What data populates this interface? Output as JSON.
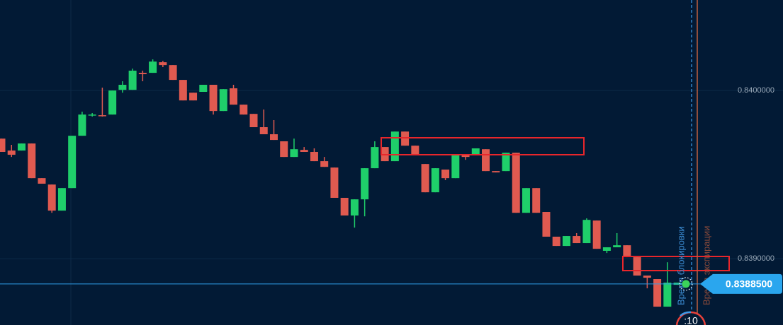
{
  "chart_data": {
    "type": "candlestick",
    "ylim": [
      0.838606,
      0.840538
    ],
    "yticks": [
      {
        "value": 0.84,
        "label": "0.8400000"
      },
      {
        "value": 0.839,
        "label": "0.8390000"
      }
    ],
    "grid": true,
    "up_color": "#1fcf6a",
    "down_color": "#e05a50",
    "open": [
      0.839714,
      0.839643,
      0.839643,
      0.839685,
      0.839479,
      0.839441,
      0.839286,
      0.83942,
      0.839731,
      0.839853,
      0.839853,
      0.839857,
      0.840004,
      0.840004,
      0.840105,
      0.840105,
      0.840168,
      0.840151,
      0.840063,
      0.839987,
      0.839992,
      0.840034,
      0.839878,
      0.840013,
      0.839916,
      0.839861,
      0.839782,
      0.83974,
      0.839698,
      0.839605,
      0.839647,
      0.839635,
      0.83958,
      0.839542,
      0.839362,
      0.839257,
      0.839353,
      0.839538,
      0.839664,
      0.83958,
      0.839756,
      0.839672,
      0.839563,
      0.839395,
      0.83953,
      0.839479,
      0.839614,
      0.839614,
      0.839651,
      0.839521,
      0.839521,
      0.83963,
      0.839273,
      0.83942,
      0.839278,
      0.839131,
      0.839076,
      0.839135,
      0.839093,
      0.839227,
      0.839047,
      0.839068,
      0.83908,
      0.839009,
      0.8389,
      0.838879,
      0.838715,
      0.838845
    ],
    "high": [
      0.839714,
      0.839677,
      0.839685,
      0.839685,
      0.839479,
      0.839441,
      0.83942,
      0.839731,
      0.839874,
      0.839866,
      0.840017,
      0.84,
      0.840055,
      0.84013,
      0.840118,
      0.840185,
      0.840176,
      0.840151,
      0.840063,
      0.839987,
      0.840034,
      0.840034,
      0.840008,
      0.840034,
      0.839916,
      0.839861,
      0.839887,
      0.839824,
      0.839698,
      0.839714,
      0.839664,
      0.839656,
      0.839605,
      0.839542,
      0.839362,
      0.839353,
      0.839538,
      0.839698,
      0.839664,
      0.839756,
      0.839756,
      0.839672,
      0.839563,
      0.839538,
      0.83953,
      0.839614,
      0.839622,
      0.839656,
      0.839651,
      0.839521,
      0.83963,
      0.83963,
      0.83942,
      0.83942,
      0.839278,
      0.839131,
      0.839135,
      0.839152,
      0.83924,
      0.839227,
      0.839068,
      0.839152,
      0.83908,
      0.839009,
      0.8389,
      0.838879,
      0.838979,
      0.838858
    ],
    "low": [
      0.839635,
      0.839605,
      0.839643,
      0.839479,
      0.839446,
      0.839273,
      0.839286,
      0.83942,
      0.839731,
      0.839845,
      0.839845,
      0.839857,
      0.839987,
      0.840004,
      0.840055,
      0.840105,
      0.840139,
      0.840063,
      0.839941,
      0.839941,
      0.839992,
      0.839857,
      0.839878,
      0.839916,
      0.839857,
      0.839782,
      0.83974,
      0.839706,
      0.839605,
      0.839605,
      0.839635,
      0.83958,
      0.839546,
      0.839362,
      0.839257,
      0.839185,
      0.839252,
      0.839538,
      0.83958,
      0.83958,
      0.839672,
      0.839622,
      0.839395,
      0.839395,
      0.839467,
      0.839479,
      0.839588,
      0.839614,
      0.839521,
      0.839513,
      0.839521,
      0.839273,
      0.839273,
      0.839273,
      0.839131,
      0.839076,
      0.839076,
      0.839093,
      0.839093,
      0.839059,
      0.839034,
      0.839068,
      0.839009,
      0.8389,
      0.838824,
      0.838715,
      0.838715,
      0.838845
    ],
    "close": [
      0.839635,
      0.839618,
      0.839685,
      0.839479,
      0.839446,
      0.839286,
      0.83942,
      0.839731,
      0.839857,
      0.839857,
      0.839853,
      0.84,
      0.840034,
      0.840118,
      0.840097,
      0.840172,
      0.840151,
      0.840063,
      0.839941,
      0.839941,
      0.840034,
      0.839878,
      0.840008,
      0.839916,
      0.839857,
      0.839782,
      0.83974,
      0.839706,
      0.839605,
      0.839651,
      0.839635,
      0.83958,
      0.839546,
      0.839362,
      0.839257,
      0.839353,
      0.839538,
      0.839664,
      0.83958,
      0.839756,
      0.839672,
      0.839622,
      0.839395,
      0.839538,
      0.839479,
      0.839614,
      0.839605,
      0.839656,
      0.839521,
      0.839513,
      0.83963,
      0.839273,
      0.83942,
      0.839273,
      0.839131,
      0.839076,
      0.839135,
      0.839093,
      0.839231,
      0.839059,
      0.839068,
      0.83908,
      0.839009,
      0.8389,
      0.838887,
      0.838715,
      0.838858,
      0.838858
    ],
    "current_price": {
      "value": 0.83885,
      "label": "0.8388500"
    },
    "lock_time_label": "Время блокировки",
    "expiry_time_label": "Время экспирации",
    "timer": ":10"
  }
}
